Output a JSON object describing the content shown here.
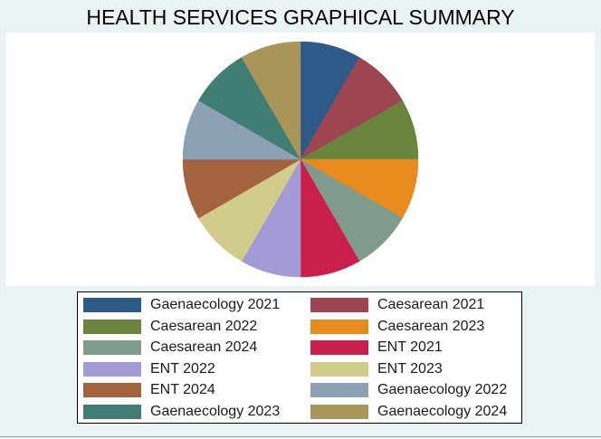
{
  "chart_data": {
    "type": "pie",
    "title": "HEALTH SERVICES GRAPHICAL SUMMARY",
    "slices": [
      {
        "name": "Gaenaecology 2021",
        "value": 1,
        "color": "#2e5a87"
      },
      {
        "name": "Caesarean 2021",
        "value": 1,
        "color": "#9d4650"
      },
      {
        "name": "Caesarean 2022",
        "value": 1,
        "color": "#69843d"
      },
      {
        "name": "Caesarean 2023",
        "value": 1,
        "color": "#e88b1e"
      },
      {
        "name": "Caesarean 2024",
        "value": 1,
        "color": "#809a8c"
      },
      {
        "name": "ENT 2021",
        "value": 1,
        "color": "#c8204a"
      },
      {
        "name": "ENT 2022",
        "value": 1,
        "color": "#a39bd6"
      },
      {
        "name": "ENT 2023",
        "value": 1,
        "color": "#d2cc8b"
      },
      {
        "name": "ENT 2024",
        "value": 1,
        "color": "#a4633f"
      },
      {
        "name": "Gaenaecology 2022",
        "value": 1,
        "color": "#8ca1b4"
      },
      {
        "name": "Gaenaecology 2023",
        "value": 1,
        "color": "#3f7d75"
      },
      {
        "name": "Gaenaecology 2024",
        "value": 1,
        "color": "#a99558"
      }
    ],
    "legend_position": "bottom"
  }
}
